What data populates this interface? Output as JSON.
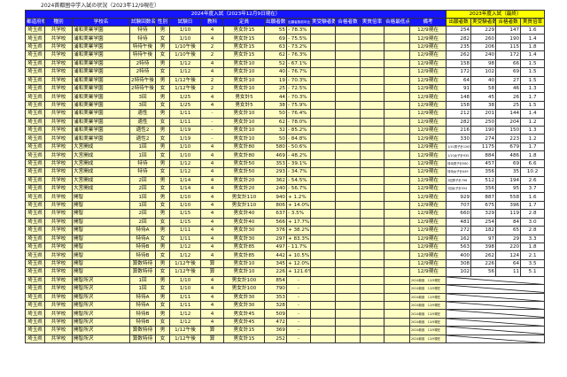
{
  "title": "2024首都圏中学入試の状況（2023年12/9現在）",
  "header": {
    "group_2024": "2024年度入試（2023年12月9日現在）",
    "group_2023": "2023年度入試（最終）",
    "columns": [
      "都道府県",
      "種別",
      "学校名",
      "試験回数名",
      "性別",
      "試験日",
      "教科",
      "定員",
      "出願者数",
      "出願者数前年比",
      "実受験者数",
      "合格者数",
      "実質倍率",
      "合格最低点",
      "備考"
    ],
    "columns_2023": [
      "出願者数",
      "実受験者数",
      "合格者数",
      "実質倍率"
    ]
  },
  "colors": {
    "header_blue": "#1515ff",
    "cell_yellow": "#ffffc4",
    "header_2023_yellow": "#ffff00"
  },
  "rows": [
    [
      "埼玉県",
      "共学校",
      "浦和実業学園",
      "特待",
      "男",
      "1/10",
      "4",
      "男女計15",
      "55",
      "- 78.3%",
      "",
      "",
      "",
      "",
      "12/9現在",
      "254",
      "229",
      "147",
      "1.6"
    ],
    [
      "埼玉県",
      "共学校",
      "浦和実業学園",
      "特待",
      "女",
      "1/10",
      "4",
      "男女計15",
      "69",
      "- 75.5%",
      "",
      "",
      "",
      "",
      "12/9現在",
      "282",
      "260",
      "190",
      "1.4"
    ],
    [
      "埼玉県",
      "共学校",
      "浦和実業学園",
      "特待午後",
      "男",
      "1/10午後",
      "2",
      "男女計15",
      "63",
      "- 73.2%",
      "",
      "",
      "",
      "",
      "12/9現在",
      "235",
      "206",
      "115",
      "1.8"
    ],
    [
      "埼玉県",
      "共学校",
      "浦和実業学園",
      "特待午後",
      "女",
      "1/10午後",
      "2",
      "男女計15",
      "62",
      "- 76.3%",
      "",
      "",
      "",
      "",
      "12/9現在",
      "262",
      "240",
      "172",
      "1.4"
    ],
    [
      "埼玉県",
      "共学校",
      "浦和実業学園",
      "2特待",
      "男",
      "1/12",
      "4",
      "男女計10",
      "52",
      "- 67.1%",
      "",
      "",
      "",
      "",
      "12/9現在",
      "158",
      "98",
      "66",
      "1.5"
    ],
    [
      "埼玉県",
      "共学校",
      "浦和実業学園",
      "2特待",
      "女",
      "1/12",
      "4",
      "男女計10",
      "40",
      "- 76.7%",
      "",
      "",
      "",
      "",
      "12/9現在",
      "172",
      "102",
      "69",
      "1.5"
    ],
    [
      "埼玉県",
      "共学校",
      "浦和実業学園",
      "2特待午後",
      "男",
      "1/12午後",
      "2",
      "男女計10",
      "19",
      "- 70.3%",
      "",
      "",
      "",
      "",
      "12/9現在",
      "64",
      "40",
      "27",
      "1.5"
    ],
    [
      "埼玉県",
      "共学校",
      "浦和実業学園",
      "2特待午後",
      "女",
      "1/12午後",
      "2",
      "男女計10",
      "25",
      "- 72.5%",
      "",
      "",
      "",
      "",
      "12/9現在",
      "91",
      "58",
      "46",
      "1.3"
    ],
    [
      "埼玉県",
      "共学校",
      "浦和実業学園",
      "3回",
      "男",
      "1/25",
      "4",
      "男女計5",
      "44",
      "- 70.3%",
      "",
      "",
      "",
      "",
      "12/9現在",
      "148",
      "45",
      "26",
      "1.7"
    ],
    [
      "埼玉県",
      "共学校",
      "浦和実業学園",
      "3回",
      "女",
      "1/25",
      "4",
      "男女計5",
      "38",
      "- 75.9%",
      "",
      "",
      "",
      "",
      "12/9現在",
      "158",
      "38",
      "25",
      "1.5"
    ],
    [
      "埼玉県",
      "共学校",
      "浦和実業学園",
      "適性",
      "男",
      "1/11",
      "-",
      "男女計10",
      "50",
      "- 76.4%",
      "",
      "",
      "",
      "",
      "12/9現在",
      "212",
      "201",
      "144",
      "1.4"
    ],
    [
      "埼玉県",
      "共学校",
      "浦和実業学園",
      "適性",
      "女",
      "1/11",
      "-",
      "男女計10",
      "62",
      "- 78.0%",
      "",
      "",
      "",
      "",
      "12/9現在",
      "282",
      "250",
      "204",
      "1.2"
    ],
    [
      "埼玉県",
      "共学校",
      "浦和実業学園",
      "適性2",
      "男",
      "1/19",
      "-",
      "男女計10",
      "32",
      "- 85.2%",
      "",
      "",
      "",
      "",
      "12/9現在",
      "216",
      "190",
      "150",
      "1.3"
    ],
    [
      "埼玉県",
      "共学校",
      "浦和実業学園",
      "適性2",
      "女",
      "1/19",
      "-",
      "男女計10",
      "50",
      "- 84.8%",
      "",
      "",
      "",
      "",
      "12/9現在",
      "330",
      "274",
      "223",
      "1.2"
    ],
    [
      "埼玉県",
      "共学校",
      "大宮開成",
      "1回",
      "男",
      "1/10",
      "4",
      "男女計80",
      "580",
      "- 50.6%",
      "",
      "",
      "",
      "",
      "12/9現在",
      "1/10男子計1267",
      "1175",
      "679",
      "1.7"
    ],
    [
      "埼玉県",
      "共学校",
      "大宮開成",
      "1回",
      "女",
      "1/10",
      "4",
      "男女計80",
      "469",
      "- 48.2%",
      "",
      "",
      "",
      "",
      "12/9現在",
      "1/10女子計935",
      "884",
      "486",
      "1.8"
    ],
    [
      "埼玉県",
      "共学校",
      "大宮開成",
      "特待",
      "男",
      "1/12",
      "4",
      "男女計50",
      "353",
      "- 39.1%",
      "",
      "",
      "",
      "",
      "12/9現在",
      "特待男子計580",
      "457",
      "69",
      "6.6"
    ],
    [
      "埼玉県",
      "共学校",
      "大宮開成",
      "特待",
      "女",
      "1/12",
      "4",
      "男女計50",
      "293",
      "- 34.7%",
      "",
      "",
      "",
      "",
      "12/9現在",
      "特待女子計449",
      "356",
      "35",
      "10.2"
    ],
    [
      "埼玉県",
      "共学校",
      "大宮開成",
      "2回",
      "男",
      "1/14",
      "4",
      "男女計20",
      "362",
      "- 54.5%",
      "",
      "",
      "",
      "",
      "12/9現在",
      "2回男子計796",
      "512",
      "194",
      "2.6"
    ],
    [
      "埼玉県",
      "共学校",
      "大宮開成",
      "2回",
      "女",
      "1/14",
      "4",
      "男女計20",
      "240",
      "- 56.7%",
      "",
      "",
      "",
      "",
      "12/9現在",
      "2回女子計554",
      "356",
      "95",
      "3.7"
    ],
    [
      "埼玉県",
      "共学校",
      "開智",
      "1回",
      "男",
      "1/10",
      "4",
      "男女計110",
      "940",
      "+ 1.2%",
      "",
      "",
      "",
      "",
      "12/9現在",
      "929",
      "887",
      "558",
      "1.6"
    ],
    [
      "埼玉県",
      "共学校",
      "開智",
      "1回",
      "女",
      "1/10",
      "4",
      "男女計110",
      "806",
      "+ 14.0%",
      "",
      "",
      "",
      "",
      "12/9現在",
      "707",
      "675",
      "396",
      "1.7"
    ],
    [
      "埼玉県",
      "共学校",
      "開智",
      "2回",
      "男",
      "1/15",
      "4",
      "男女計40",
      "637",
      "- 3.5%",
      "",
      "",
      "",
      "",
      "12/9現在",
      "660",
      "329",
      "119",
      "2.8"
    ],
    [
      "埼玉県",
      "共学校",
      "開智",
      "2回",
      "女",
      "1/15",
      "4",
      "男女計40",
      "566",
      "+ 17.7%",
      "",
      "",
      "",
      "",
      "12/9現在",
      "481",
      "254",
      "84",
      "3.0"
    ],
    [
      "埼玉県",
      "共学校",
      "開智",
      "特待A",
      "男",
      "1/11",
      "4",
      "男女計30",
      "376",
      "+ 38.2%",
      "",
      "",
      "",
      "",
      "12/9現在",
      "272",
      "182",
      "65",
      "2.8"
    ],
    [
      "埼玉県",
      "共学校",
      "開智",
      "特待A",
      "女",
      "1/11",
      "4",
      "男女計30",
      "297",
      "+ 83.3%",
      "",
      "",
      "",
      "",
      "12/9現在",
      "162",
      "97",
      "29",
      "3.3"
    ],
    [
      "埼玉県",
      "共学校",
      "開智",
      "特待B",
      "男",
      "1/12",
      "4",
      "男女計85",
      "497",
      "- 11.7%",
      "",
      "",
      "",
      "",
      "12/9現在",
      "563",
      "398",
      "220",
      "1.8"
    ],
    [
      "埼玉県",
      "共学校",
      "開智",
      "特待B",
      "女",
      "1/12",
      "4",
      "男女計85",
      "442",
      "+ 10.5%",
      "",
      "",
      "",
      "",
      "12/9現在",
      "400",
      "262",
      "124",
      "2.1"
    ],
    [
      "埼玉県",
      "共学校",
      "開智",
      "算数特待",
      "男",
      "1/12午後",
      "算",
      "男女計10",
      "345",
      "+ 12.0%",
      "",
      "",
      "",
      "",
      "12/9現在",
      "308",
      "226",
      "64",
      "3.5"
    ],
    [
      "埼玉県",
      "共学校",
      "開智",
      "算数特待",
      "女",
      "1/12午後",
      "算",
      "男女計10",
      "226",
      "+ 121.6%",
      "",
      "",
      "",
      "",
      "12/9現在",
      "102",
      "56",
      "11",
      "5.1"
    ],
    [
      "埼玉県",
      "共学校",
      "開智所沢",
      "1回",
      "男",
      "1/10",
      "4",
      "男女計100",
      "854",
      "-",
      "",
      "",
      "",
      "",
      "2024新設　12/9現在"
    ],
    [
      "埼玉県",
      "共学校",
      "開智所沢",
      "1回",
      "女",
      "1/10",
      "4",
      "男女計100",
      "790",
      "-",
      "",
      "",
      "",
      "",
      "2024新設　12/9現在"
    ],
    [
      "埼玉県",
      "共学校",
      "開智所沢",
      "特待A",
      "男",
      "1/11",
      "4",
      "男女計30",
      "353",
      "-",
      "",
      "",
      "",
      "",
      "2024新設　12/9現在"
    ],
    [
      "埼玉県",
      "共学校",
      "開智所沢",
      "特待A",
      "女",
      "1/11",
      "4",
      "男女計30",
      "328",
      "-",
      "",
      "",
      "",
      "",
      "2024新設　12/9現在"
    ],
    [
      "埼玉県",
      "共学校",
      "開智所沢",
      "特待B",
      "男",
      "1/12",
      "4",
      "男女計45",
      "509",
      "-",
      "",
      "",
      "",
      "",
      "2024新設　12/9現在"
    ],
    [
      "埼玉県",
      "共学校",
      "開智所沢",
      "特待B",
      "女",
      "1/12",
      "4",
      "男女計45",
      "472",
      "-",
      "",
      "",
      "",
      "",
      "2024新設　12/9現在"
    ],
    [
      "埼玉県",
      "共学校",
      "開智所沢",
      "算数特待",
      "男",
      "1/12午後",
      "算",
      "男女計15",
      "369",
      "-",
      "",
      "",
      "",
      "",
      "2024新設　12/9現在"
    ],
    [
      "埼玉県",
      "共学校",
      "開智所沢",
      "算数特待",
      "女",
      "1/12午後",
      "算",
      "男女計15",
      "252",
      "-",
      "",
      "",
      "",
      "",
      "2024新設　12/9現在"
    ]
  ]
}
